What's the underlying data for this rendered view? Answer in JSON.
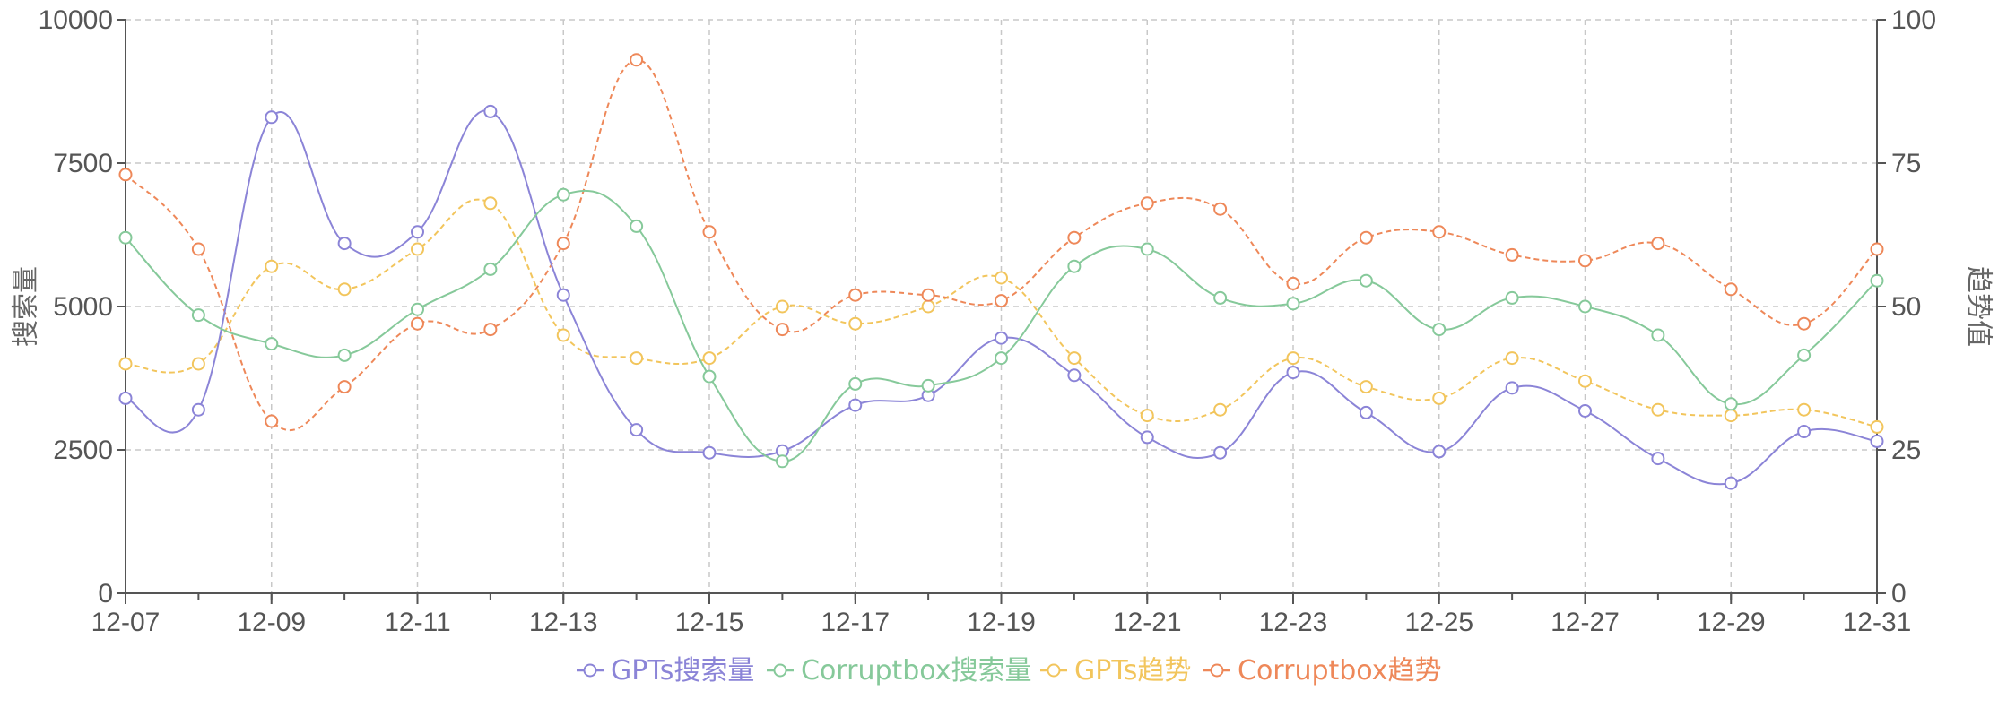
{
  "chart_data": {
    "type": "line",
    "categories": [
      "12-07",
      "12-08",
      "12-09",
      "12-10",
      "12-11",
      "12-12",
      "12-13",
      "12-14",
      "12-15",
      "12-16",
      "12-17",
      "12-18",
      "12-19",
      "12-20",
      "12-21",
      "12-22",
      "12-23",
      "12-24",
      "12-25",
      "12-26",
      "12-27",
      "12-28",
      "12-29",
      "12-30",
      "12-31"
    ],
    "x_tick_labels": [
      "12-07",
      "12-09",
      "12-11",
      "12-13",
      "12-15",
      "12-17",
      "12-19",
      "12-21",
      "12-23",
      "12-25",
      "12-27",
      "12-29",
      "12-31"
    ],
    "y_left": {
      "label": "搜索量",
      "range": [
        0,
        10000
      ],
      "ticks": [
        "0",
        "2500",
        "5000",
        "7500",
        "10000"
      ]
    },
    "y_right": {
      "label": "趋势值",
      "range": [
        0,
        100
      ],
      "ticks": [
        "0",
        "25",
        "50",
        "75",
        "100"
      ]
    },
    "grid": true,
    "legend_position": "bottom",
    "series": [
      {
        "name": "GPTs搜索量",
        "axis": "left",
        "color": "#8b84d7",
        "dashed": false,
        "values": [
          3400,
          3200,
          8300,
          6100,
          6300,
          8400,
          5200,
          2850,
          2450,
          2480,
          3280,
          3450,
          4450,
          3800,
          2720,
          2450,
          3850,
          3150,
          2470,
          3580,
          3180,
          2350,
          1920,
          2820,
          2650
        ]
      },
      {
        "name": "Corruptbox搜索量",
        "axis": "left",
        "color": "#86c99a",
        "dashed": false,
        "values": [
          6200,
          4850,
          4350,
          4150,
          4950,
          5650,
          6950,
          6400,
          3780,
          2300,
          3650,
          3620,
          4100,
          5700,
          6000,
          5150,
          5050,
          5450,
          4600,
          5150,
          5000,
          4500,
          3300,
          4150,
          5450
        ]
      },
      {
        "name": "GPTs趋势",
        "axis": "right",
        "color": "#f2c55c",
        "dashed": true,
        "values": [
          40,
          40,
          57,
          53,
          60,
          68,
          45,
          41,
          41,
          50,
          47,
          50,
          55,
          41,
          31,
          32,
          41,
          36,
          34,
          41,
          37,
          32,
          31,
          32,
          29
        ]
      },
      {
        "name": "Corruptbox趋势",
        "axis": "right",
        "color": "#ee8859",
        "dashed": true,
        "values": [
          73,
          60,
          30,
          36,
          47,
          46,
          61,
          93,
          63,
          46,
          52,
          52,
          51,
          62,
          68,
          67,
          54,
          62,
          63,
          59,
          58,
          61,
          53,
          47,
          60
        ]
      }
    ]
  }
}
